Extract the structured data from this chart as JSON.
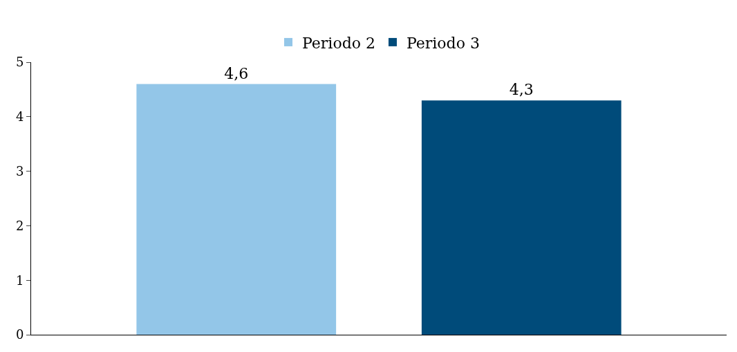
{
  "chart_data": {
    "type": "bar",
    "categories": [
      null
    ],
    "series": [
      {
        "name": "Periodo 2",
        "color": "#93c6e8",
        "values": [
          4.6
        ],
        "value_labels": [
          "4,6"
        ]
      },
      {
        "name": "Periodo 3",
        "color": "#004b7a",
        "values": [
          4.3
        ],
        "value_labels": [
          "4,3"
        ]
      }
    ],
    "ylim": [
      0,
      5
    ],
    "yticks": [
      0,
      1,
      2,
      3,
      4,
      5
    ],
    "legend": "top"
  }
}
